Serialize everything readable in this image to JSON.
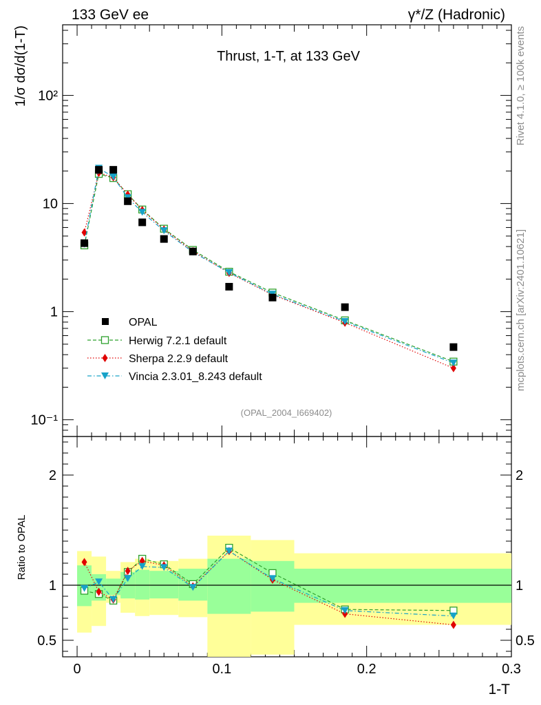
{
  "header": {
    "left": "133 GeV ee",
    "right": "γ*/Z (Hadronic)"
  },
  "side_labels": {
    "top": "Rivet 4.1.0, ≥ 100k events",
    "bottom": "mcplots.cern.ch [arXiv:2401.10621]"
  },
  "colors": {
    "data": "#000000",
    "herwig": "#2ca02c",
    "sherpa": "#e00000",
    "vincia": "#17a2c8",
    "band_inner": "#99ff99",
    "band_outer": "#ffff99"
  },
  "chart_data": [
    {
      "type": "scatter",
      "title": "Thrust, 1-T, at 133 GeV",
      "ref_label": "(OPAL_2004_I669402)",
      "ylabel": "1/σ  dσ/d(1-T)",
      "xlabel": "",
      "yscale": "log",
      "xlim": [
        -0.01,
        0.3
      ],
      "ylim": [
        0.07,
        450
      ],
      "y_ticks": [
        {
          "value": 0.1,
          "label": "10⁻¹"
        },
        {
          "value": 1,
          "label": "1"
        },
        {
          "value": 10,
          "label": "10"
        },
        {
          "value": 100,
          "label": "10²"
        }
      ],
      "legend_position": "bottom-left",
      "x": [
        0.005,
        0.015,
        0.025,
        0.035,
        0.045,
        0.06,
        0.08,
        0.105,
        0.135,
        0.185,
        0.26
      ],
      "series": [
        {
          "name": "OPAL",
          "key": "data",
          "marker": "square",
          "values": [
            4.3,
            20.5,
            20.5,
            10.5,
            6.7,
            4.7,
            3.6,
            1.7,
            1.35,
            1.1,
            0.47
          ]
        },
        {
          "name": "Herwig 7.2.1 default",
          "key": "herwig",
          "marker": "open-square",
          "line": "dashed",
          "values": [
            4.1,
            18.8,
            17.2,
            12.2,
            8.8,
            5.85,
            3.72,
            2.34,
            1.5,
            0.83,
            0.345
          ]
        },
        {
          "name": "Sherpa 2.2.9 default",
          "key": "sherpa",
          "marker": "diamond",
          "line": "dotted",
          "values": [
            5.4,
            19.2,
            17.5,
            12.1,
            8.7,
            5.75,
            3.62,
            2.28,
            1.43,
            0.79,
            0.3
          ]
        },
        {
          "name": "Vincia 2.3.01_8.243 default",
          "key": "vincia",
          "marker": "triangle-down",
          "line": "dashdot",
          "values": [
            4.2,
            21.2,
            17.6,
            11.3,
            8.3,
            5.6,
            3.55,
            2.3,
            1.45,
            0.81,
            0.335
          ]
        }
      ]
    },
    {
      "type": "scatter",
      "title": "",
      "ylabel": "Ratio to OPAL",
      "xlabel": "1-T",
      "xlim": [
        -0.01,
        0.3
      ],
      "ylim": [
        0.35,
        2.35
      ],
      "x_ticks": [
        {
          "value": 0,
          "label": "0"
        },
        {
          "value": 0.1,
          "label": "0.1"
        },
        {
          "value": 0.2,
          "label": "0.2"
        },
        {
          "value": 0.3,
          "label": "0.3"
        }
      ],
      "y_ticks": [
        {
          "value": 0.5,
          "label": "0.5"
        },
        {
          "value": 1,
          "label": "1"
        },
        {
          "value": 2,
          "label": "2"
        }
      ],
      "bins": [
        {
          "lo": 0.0,
          "hi": 0.01,
          "inner": [
            0.81,
            1.18
          ],
          "outer": [
            0.57,
            1.31
          ]
        },
        {
          "lo": 0.01,
          "hi": 0.02,
          "inner": [
            0.86,
            1.1
          ],
          "outer": [
            0.63,
            1.26
          ]
        },
        {
          "lo": 0.02,
          "hi": 0.03,
          "inner": [
            0.91,
            1.06
          ],
          "outer": [
            0.84,
            1.13
          ]
        },
        {
          "lo": 0.03,
          "hi": 0.04,
          "inner": [
            0.88,
            1.12
          ],
          "outer": [
            0.75,
            1.21
          ]
        },
        {
          "lo": 0.04,
          "hi": 0.05,
          "inner": [
            0.87,
            1.14
          ],
          "outer": [
            0.72,
            1.24
          ]
        },
        {
          "lo": 0.05,
          "hi": 0.07,
          "inner": [
            0.88,
            1.13
          ],
          "outer": [
            0.73,
            1.22
          ]
        },
        {
          "lo": 0.07,
          "hi": 0.09,
          "inner": [
            0.86,
            1.15
          ],
          "outer": [
            0.71,
            1.24
          ]
        },
        {
          "lo": 0.09,
          "hi": 0.12,
          "inner": [
            0.74,
            1.24
          ],
          "outer": [
            0.35,
            1.45
          ]
        },
        {
          "lo": 0.12,
          "hi": 0.15,
          "inner": [
            0.76,
            1.22
          ],
          "outer": [
            0.37,
            1.41
          ]
        },
        {
          "lo": 0.15,
          "hi": 0.3,
          "inner": [
            0.84,
            1.15
          ],
          "outer": [
            0.64,
            1.29
          ]
        }
      ],
      "series": [
        {
          "name": "Herwig 7.2.1 default",
          "key": "herwig",
          "marker": "open-square",
          "line": "dashed",
          "values": [
            0.95,
            0.92,
            0.86,
            1.12,
            1.24,
            1.19,
            1.01,
            1.34,
            1.11,
            0.78,
            0.77
          ]
        },
        {
          "name": "Sherpa 2.2.9 default",
          "key": "sherpa",
          "marker": "diamond",
          "line": "dotted",
          "values": [
            1.21,
            0.94,
            0.87,
            1.13,
            1.22,
            1.18,
            0.99,
            1.31,
            1.05,
            0.74,
            0.64
          ]
        },
        {
          "name": "Vincia 2.3.01_8.243 default",
          "key": "vincia",
          "marker": "triangle-down",
          "line": "dashdot",
          "values": [
            0.97,
            1.03,
            0.87,
            1.06,
            1.17,
            1.16,
            0.98,
            1.31,
            1.06,
            0.77,
            0.72
          ]
        }
      ]
    }
  ]
}
